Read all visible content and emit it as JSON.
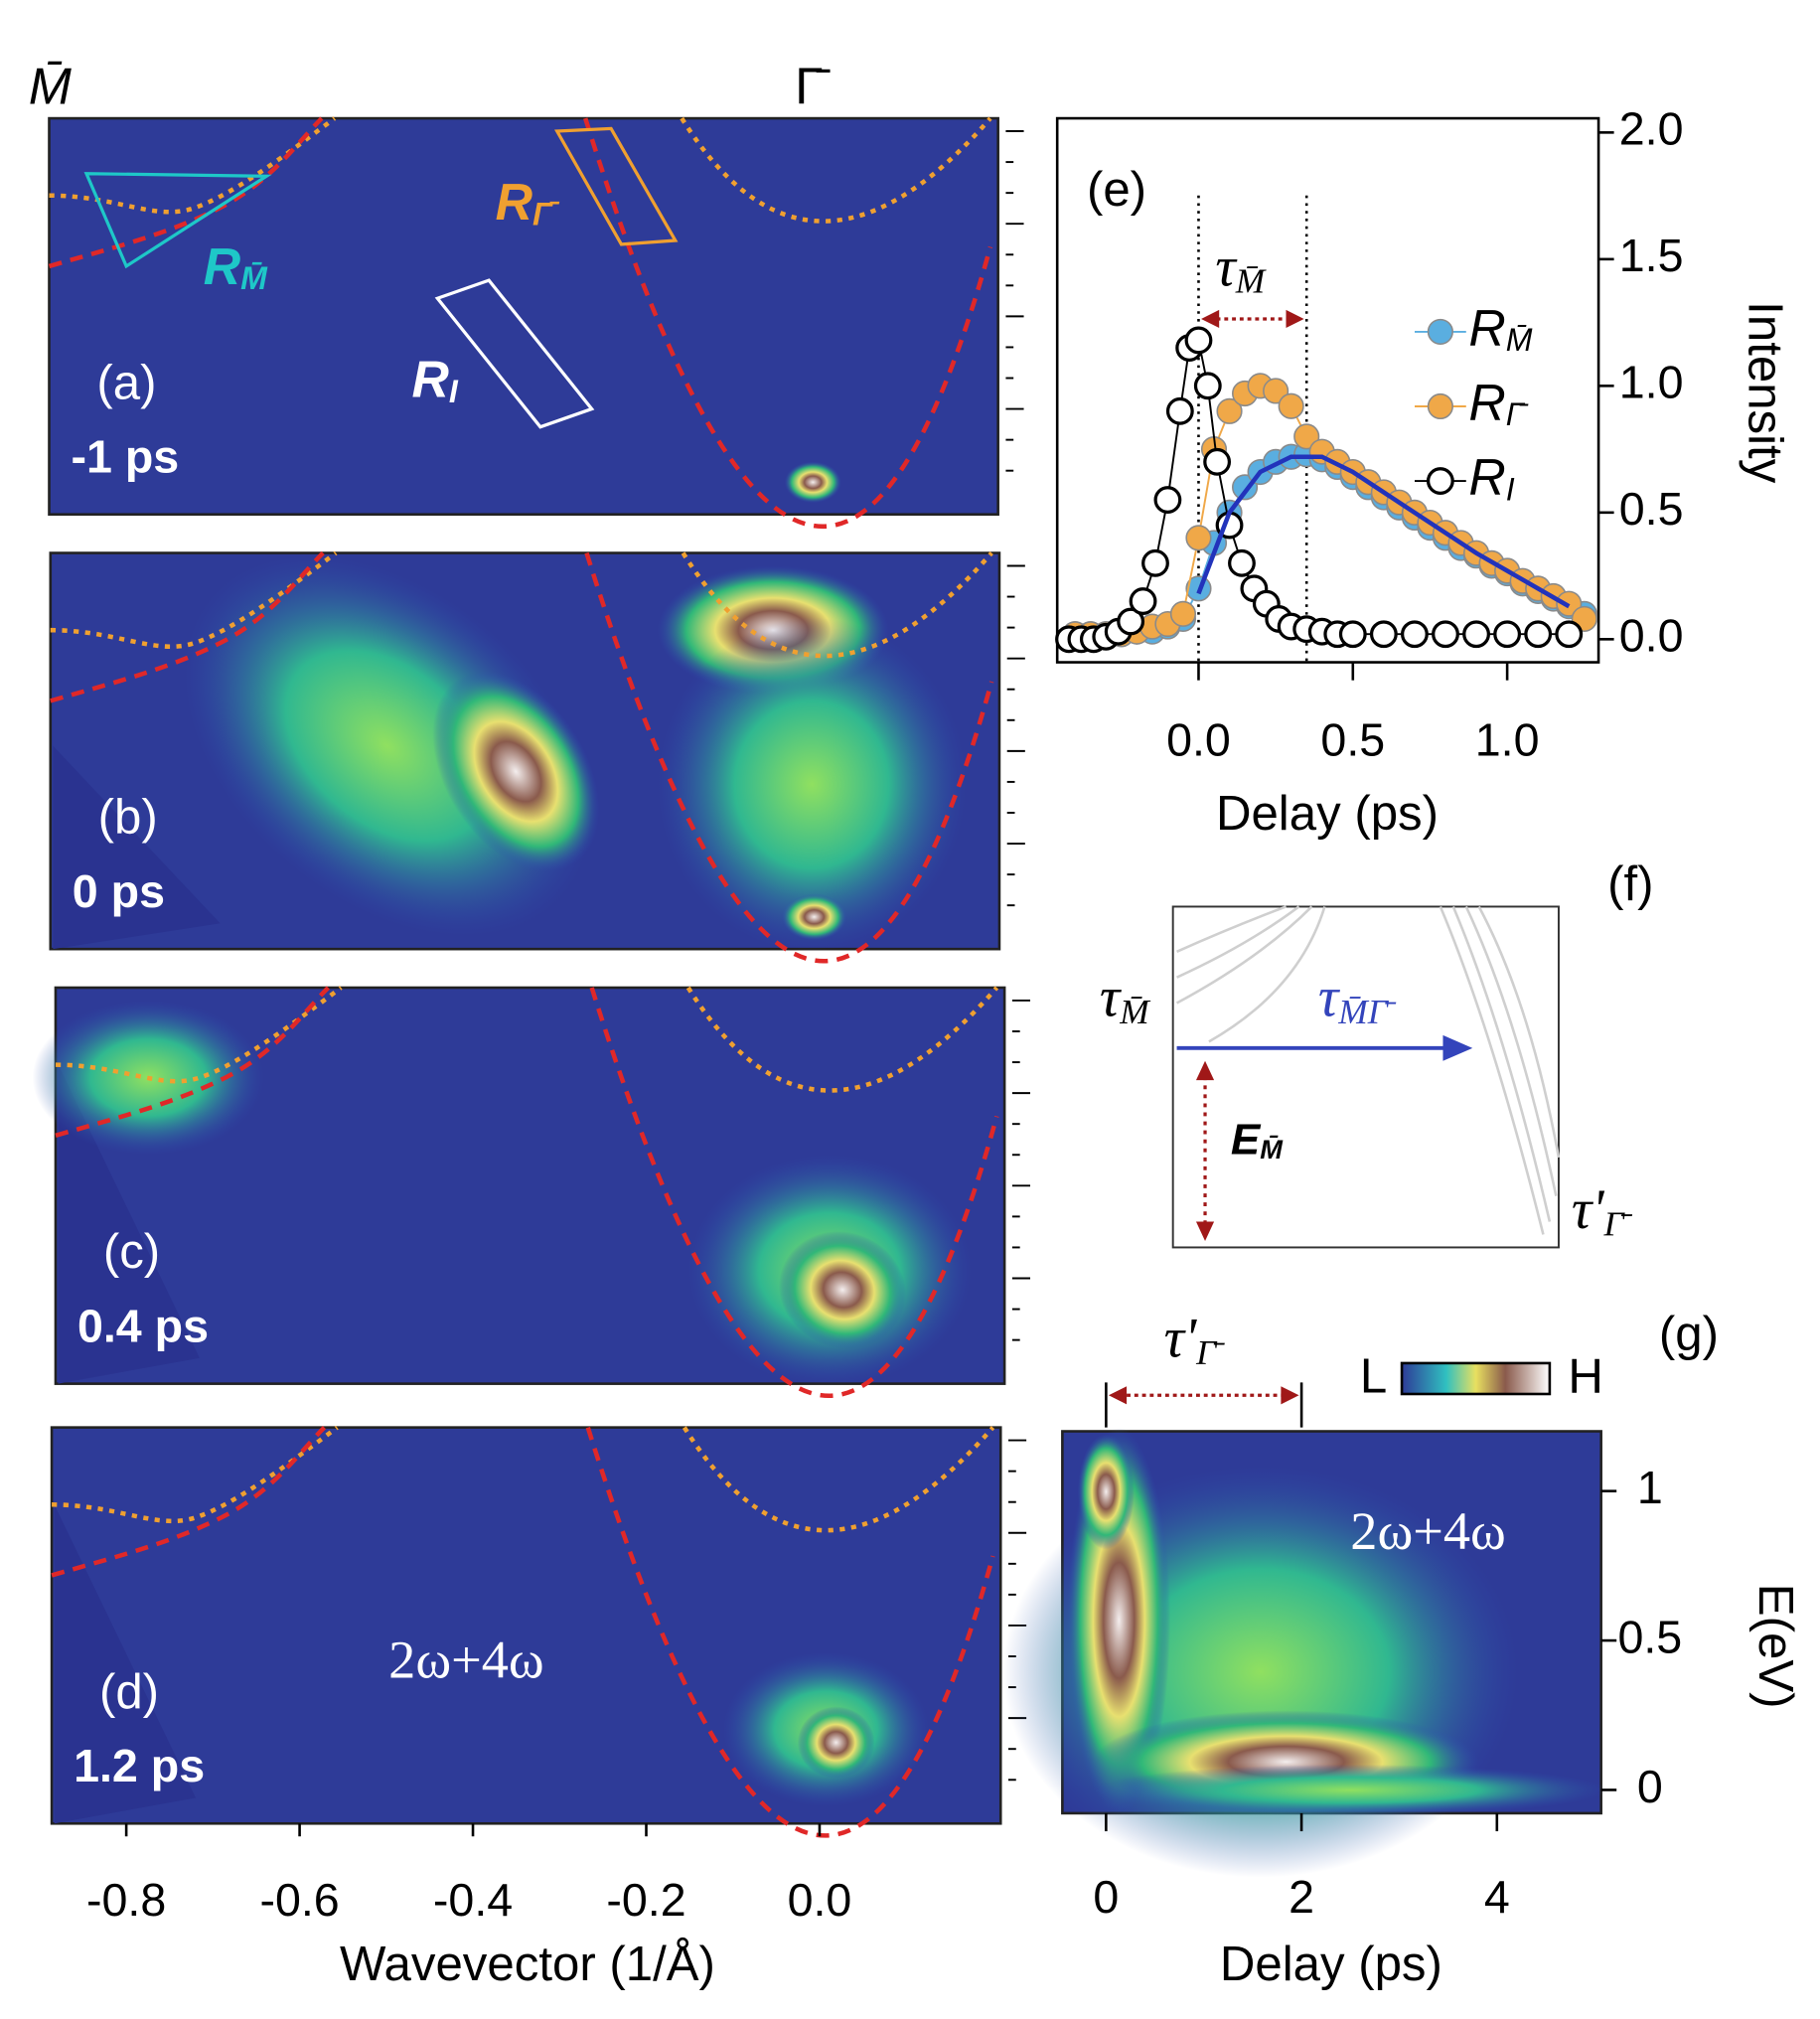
{
  "chart_data": [
    {
      "type": "image",
      "top_labels": [
        "M̄",
        "Γ̄"
      ],
      "xlabel": "Wavevector (1/Å)",
      "xlim": [
        -0.889,
        0.206
      ],
      "xticks": [
        -0.8,
        -0.6,
        -0.4,
        -0.2,
        {
          "value": 0,
          "label": "0.0"
        }
      ],
      "panels": [
        {
          "label": "(a)",
          "time": "-1 ps"
        },
        {
          "label": "(b)",
          "time": "0 ps"
        },
        {
          "label": "(c)",
          "time": "0.4 ps"
        },
        {
          "label": "(d)",
          "time": "1.2 ps",
          "annotation": "2ω+4ω"
        }
      ],
      "regions": [
        {
          "name": "RM̄",
          "color": "#1ec8c8"
        },
        {
          "name": "RΓ̄",
          "color": "#f0a030"
        },
        {
          "name": "RI",
          "color": "#ffffff"
        }
      ]
    },
    {
      "type": "scatter",
      "label": "(e)",
      "xlabel": "Delay (ps)",
      "ylabel": "Intensity",
      "xlim": [
        -0.458,
        1.296
      ],
      "ylim": [
        -0.091,
        2.056
      ],
      "xticks": [
        {
          "value": 0,
          "label": "0.0"
        },
        0.5,
        {
          "value": 1,
          "label": "1.0"
        }
      ],
      "yticks": [
        {
          "value": 0,
          "label": "0.0"
        },
        0.5,
        {
          "value": 1,
          "label": "1.0"
        },
        1.5,
        {
          "value": 2,
          "label": "2.0"
        }
      ],
      "annotation": "τM̄",
      "vlines": [
        0,
        0.35
      ],
      "series": [
        {
          "name": "RM̄",
          "color": "#5aaee0",
          "x": [
            -0.4,
            -0.35,
            -0.3,
            -0.25,
            -0.2,
            -0.15,
            -0.1,
            -0.05,
            0,
            0.05,
            0.1,
            0.15,
            0.2,
            0.25,
            0.3,
            0.35,
            0.4,
            0.45,
            0.5,
            0.55,
            0.6,
            0.65,
            0.7,
            0.75,
            0.8,
            0.85,
            0.9,
            0.95,
            1.0,
            1.05,
            1.1,
            1.15,
            1.2,
            1.25
          ],
          "values": [
            0.02,
            0.02,
            0.02,
            0.02,
            0.03,
            0.03,
            0.05,
            0.08,
            0.2,
            0.38,
            0.5,
            0.6,
            0.66,
            0.7,
            0.72,
            0.73,
            0.71,
            0.68,
            0.64,
            0.6,
            0.56,
            0.52,
            0.48,
            0.44,
            0.4,
            0.36,
            0.33,
            0.29,
            0.26,
            0.22,
            0.19,
            0.16,
            0.13,
            0.1
          ]
        },
        {
          "name": "RΓ̄",
          "color": "#f0a848",
          "x": [
            -0.4,
            -0.35,
            -0.3,
            -0.25,
            -0.2,
            -0.15,
            -0.1,
            -0.05,
            0,
            0.05,
            0.1,
            0.15,
            0.2,
            0.25,
            0.3,
            0.35,
            0.4,
            0.45,
            0.5,
            0.55,
            0.6,
            0.65,
            0.7,
            0.75,
            0.8,
            0.85,
            0.9,
            0.95,
            1.0,
            1.05,
            1.1,
            1.15,
            1.2,
            1.25
          ],
          "values": [
            0.02,
            0.02,
            0.02,
            0.02,
            0.03,
            0.05,
            0.06,
            0.1,
            0.4,
            0.75,
            0.9,
            0.97,
            1.0,
            0.98,
            0.92,
            0.8,
            0.74,
            0.7,
            0.66,
            0.62,
            0.58,
            0.54,
            0.5,
            0.46,
            0.42,
            0.38,
            0.34,
            0.3,
            0.27,
            0.23,
            0.2,
            0.17,
            0.14,
            0.08
          ]
        },
        {
          "name": "RI",
          "color": "#000000",
          "open": true,
          "x": [
            -0.42,
            -0.38,
            -0.34,
            -0.3,
            -0.26,
            -0.22,
            -0.18,
            -0.14,
            -0.1,
            -0.06,
            -0.03,
            0,
            0.03,
            0.06,
            0.1,
            0.14,
            0.18,
            0.22,
            0.26,
            0.3,
            0.35,
            0.4,
            0.45,
            0.5,
            0.6,
            0.7,
            0.8,
            0.9,
            1.0,
            1.1,
            1.2
          ],
          "values": [
            0,
            0,
            0,
            0.01,
            0.03,
            0.07,
            0.15,
            0.3,
            0.55,
            0.9,
            1.15,
            1.18,
            1.0,
            0.7,
            0.45,
            0.3,
            0.2,
            0.14,
            0.08,
            0.05,
            0.04,
            0.03,
            0.02,
            0.02,
            0.02,
            0.02,
            0.02,
            0.02,
            0.02,
            0.02,
            0.02
          ]
        }
      ],
      "fit": {
        "color": "#2233bb",
        "x": [
          0,
          0.1,
          0.2,
          0.3,
          0.4,
          0.5,
          0.6,
          0.7,
          0.8,
          0.9,
          1.0,
          1.1,
          1.2
        ],
        "values": [
          0.18,
          0.5,
          0.66,
          0.72,
          0.72,
          0.66,
          0.58,
          0.5,
          0.42,
          0.34,
          0.27,
          0.2,
          0.13
        ]
      }
    },
    {
      "type": "heatmap",
      "label": "(g)",
      "xlabel": "Delay (ps)",
      "ylabel": "E(eV)",
      "xlim": [
        -0.447,
        5.066
      ],
      "ylim": [
        -0.078,
        1.2
      ],
      "xticks": [
        0,
        2,
        4
      ],
      "yticks": [
        0,
        0.5,
        1
      ],
      "annotation": "2ω+4ω",
      "tau": "τ'Γ̄",
      "colorbar": [
        "L",
        "H"
      ]
    }
  ],
  "panel_f": {
    "label": "(f)",
    "labels": [
      "τM̄",
      "τM̄Γ̄",
      "EM̄",
      "τ'Γ̄"
    ]
  }
}
